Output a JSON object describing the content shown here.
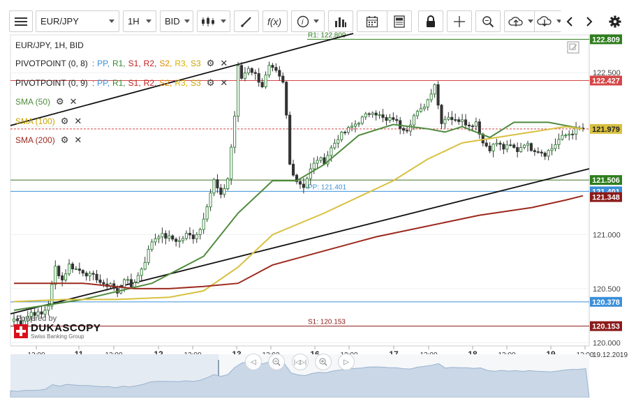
{
  "toolbar": {
    "symbol": "EUR/JPY",
    "timeframe": "1H",
    "price_type": "BID",
    "icons": [
      "menu-icon",
      "candle-type-icon",
      "draw-icon",
      "fx-icon",
      "info-icon",
      "volume-icon",
      "calendar-icon",
      "report-icon",
      "lock-icon",
      "crosshair-icon",
      "zoom-icon",
      "cloud-upload-icon",
      "cloud-download-icon",
      "prev-icon",
      "next-icon",
      "settings-icon"
    ]
  },
  "legend": {
    "title": "EUR/JPY, 1H, BID",
    "pivot1_name": "PIVOTPOINT (0, 8)",
    "pivot2_name": "PIVOTPOINT (0, 9)",
    "pivot_levels": [
      "PP,",
      "R1,",
      "S1,",
      "R2,",
      "S2,",
      "R3,",
      "S3"
    ],
    "sma50": "SMA (50)",
    "sma100": "SMA (100)",
    "sma200": "SMA (200)"
  },
  "watermark": {
    "powered": "Powered by",
    "brand": "DUKASCOPY",
    "tagline": "Swiss Banking Group"
  },
  "chart_data": {
    "type": "candlestick",
    "symbol": "EUR/JPY",
    "timeframe": "1H",
    "price_type": "BID",
    "ylim": [
      119.97,
      122.85
    ],
    "y_ticks": [
      120.0,
      120.5,
      121.0,
      121.5,
      122.0,
      122.5
    ],
    "y_tick_labels": [
      "120.000",
      "120.500",
      "121.000",
      "121.500",
      "122.000",
      "122.500"
    ],
    "x_ticks": [
      "12:00",
      "11",
      "12:00",
      "12",
      "12:00",
      "13",
      "12:00",
      "16",
      "12:00",
      "17",
      "12:00",
      "18",
      "12:00",
      "19",
      "12:00"
    ],
    "x_last_label": "19.12.2019",
    "last_price": 121.979,
    "pivot_levels": [
      {
        "name": "R1",
        "label": "R1: 122.809",
        "value": 122.809,
        "color": "#2f7d1e"
      },
      {
        "name": "PP",
        "label": "PP: 121.401",
        "value": 121.401,
        "color": "#3b8fd9"
      },
      {
        "name": "S1",
        "label": "S1: 120.153",
        "value": 120.153,
        "color": "#8b1a1a"
      }
    ],
    "h_lines": [
      {
        "value": 122.427,
        "color": "#d64545"
      },
      {
        "value": 121.506,
        "color": "#4a7a2a"
      },
      {
        "value": 120.378,
        "color": "#3b8fd9"
      },
      {
        "value": 121.348,
        "color": "#8b1a1a"
      }
    ],
    "price_badges": [
      {
        "label": "122.809",
        "value": 122.809,
        "bg": "#2f7d1e"
      },
      {
        "label": "122.427",
        "value": 122.427,
        "bg": "#d64545"
      },
      {
        "label": "121.979",
        "value": 121.979,
        "bg": "#d8c040"
      },
      {
        "label": "121.506",
        "value": 121.506,
        "bg": "#2f7d1e"
      },
      {
        "label": "121.401",
        "value": 121.401,
        "bg": "#3b8fd9"
      },
      {
        "label": "121.348",
        "value": 121.348,
        "bg": "#8b1a1a"
      },
      {
        "label": "120.378",
        "value": 120.378,
        "bg": "#3b8fd9"
      },
      {
        "label": "120.153",
        "value": 120.153,
        "bg": "#8b1a1a"
      }
    ],
    "close_anchors": [
      [
        0,
        120.22
      ],
      [
        2,
        120.18
      ],
      [
        5,
        120.28
      ],
      [
        8,
        120.26
      ],
      [
        10,
        120.35
      ],
      [
        12,
        120.7
      ],
      [
        14,
        120.58
      ],
      [
        16,
        120.72
      ],
      [
        18,
        120.68
      ],
      [
        20,
        120.66
      ],
      [
        22,
        120.62
      ],
      [
        24,
        120.6
      ],
      [
        26,
        120.52
      ],
      [
        28,
        120.55
      ],
      [
        30,
        120.45
      ],
      [
        32,
        120.6
      ],
      [
        34,
        120.52
      ],
      [
        36,
        120.62
      ],
      [
        38,
        120.76
      ],
      [
        40,
        120.94
      ],
      [
        42,
        121.0
      ],
      [
        44,
        120.98
      ],
      [
        46,
        120.96
      ],
      [
        48,
        120.94
      ],
      [
        50,
        121.0
      ],
      [
        52,
        120.98
      ],
      [
        54,
        121.05
      ],
      [
        56,
        121.28
      ],
      [
        58,
        121.5
      ],
      [
        60,
        121.35
      ],
      [
        62,
        121.52
      ],
      [
        64,
        122.1
      ],
      [
        65,
        122.55
      ],
      [
        66,
        122.45
      ],
      [
        68,
        122.55
      ],
      [
        70,
        122.48
      ],
      [
        72,
        122.38
      ],
      [
        74,
        122.55
      ],
      [
        76,
        122.5
      ],
      [
        78,
        122.4
      ],
      [
        79,
        122.1
      ],
      [
        80,
        121.65
      ],
      [
        82,
        121.5
      ],
      [
        84,
        121.45
      ],
      [
        86,
        121.6
      ],
      [
        88,
        121.7
      ],
      [
        90,
        121.68
      ],
      [
        92,
        121.8
      ],
      [
        94,
        121.9
      ],
      [
        96,
        121.95
      ],
      [
        98,
        122.0
      ],
      [
        100,
        122.05
      ],
      [
        102,
        122.1
      ],
      [
        104,
        122.15
      ],
      [
        106,
        122.1
      ],
      [
        108,
        122.05
      ],
      [
        110,
        122.08
      ],
      [
        112,
        122.0
      ],
      [
        114,
        121.98
      ],
      [
        116,
        122.1
      ],
      [
        118,
        122.15
      ],
      [
        120,
        122.25
      ],
      [
        122,
        122.4
      ],
      [
        123,
        122.2
      ],
      [
        124,
        122.05
      ],
      [
        126,
        122.1
      ],
      [
        128,
        122.05
      ],
      [
        130,
        122.08
      ],
      [
        132,
        122.0
      ],
      [
        134,
        122.05
      ],
      [
        136,
        121.85
      ],
      [
        138,
        121.8
      ],
      [
        140,
        121.85
      ],
      [
        142,
        121.8
      ],
      [
        144,
        121.82
      ],
      [
        146,
        121.78
      ],
      [
        148,
        121.85
      ],
      [
        150,
        121.8
      ],
      [
        152,
        121.78
      ],
      [
        154,
        121.75
      ],
      [
        156,
        121.8
      ],
      [
        158,
        121.88
      ],
      [
        160,
        121.92
      ],
      [
        162,
        121.95
      ],
      [
        164,
        121.98
      ],
      [
        165,
        121.979
      ]
    ],
    "series": [
      {
        "name": "SMA (50)",
        "color": "#4f8a3c",
        "points": [
          [
            0,
            120.3
          ],
          [
            20,
            120.4
          ],
          [
            40,
            120.55
          ],
          [
            55,
            120.8
          ],
          [
            65,
            121.2
          ],
          [
            75,
            121.5
          ],
          [
            82,
            121.5
          ],
          [
            90,
            121.65
          ],
          [
            100,
            121.92
          ],
          [
            110,
            122.02
          ],
          [
            120,
            121.98
          ],
          [
            125,
            121.95
          ],
          [
            130,
            122.0
          ],
          [
            138,
            121.9
          ],
          [
            145,
            122.04
          ],
          [
            155,
            122.04
          ],
          [
            165,
            121.98
          ]
        ]
      },
      {
        "name": "SMA (100)",
        "color": "#d8c040",
        "points": [
          [
            0,
            120.38
          ],
          [
            15,
            120.4
          ],
          [
            30,
            120.4
          ],
          [
            45,
            120.42
          ],
          [
            55,
            120.48
          ],
          [
            65,
            120.7
          ],
          [
            75,
            121.0
          ],
          [
            90,
            121.2
          ],
          [
            100,
            121.35
          ],
          [
            110,
            121.5
          ],
          [
            120,
            121.7
          ],
          [
            130,
            121.85
          ],
          [
            140,
            121.9
          ],
          [
            150,
            121.95
          ],
          [
            160,
            122.0
          ],
          [
            165,
            121.98
          ]
        ]
      },
      {
        "name": "SMA (200)",
        "color": "#9c2a1e",
        "points": [
          [
            0,
            120.55
          ],
          [
            20,
            120.55
          ],
          [
            35,
            120.5
          ],
          [
            45,
            120.5
          ],
          [
            55,
            120.52
          ],
          [
            65,
            120.55
          ],
          [
            75,
            120.72
          ],
          [
            90,
            120.85
          ],
          [
            105,
            120.98
          ],
          [
            120,
            121.08
          ],
          [
            135,
            121.18
          ],
          [
            150,
            121.25
          ],
          [
            160,
            121.32
          ],
          [
            165,
            121.36
          ]
        ]
      }
    ]
  }
}
